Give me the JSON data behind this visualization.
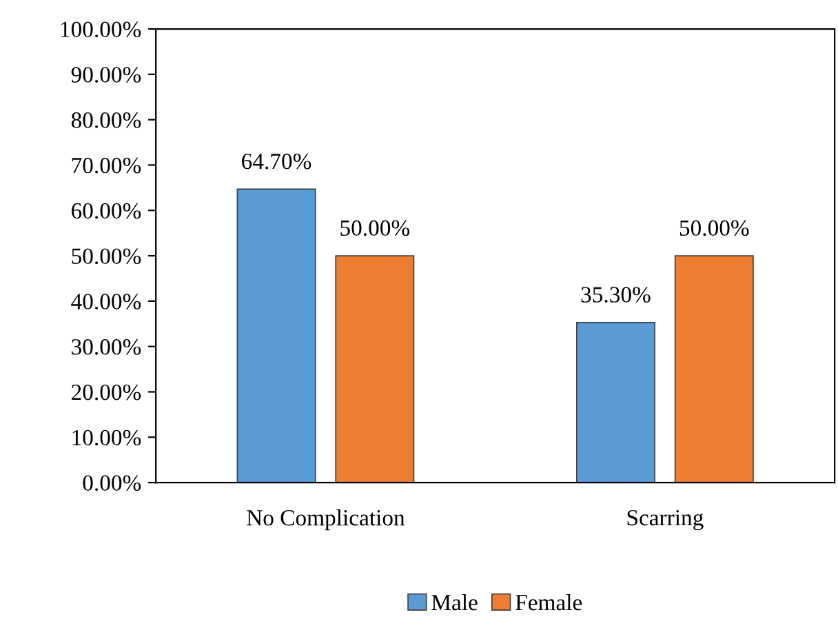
{
  "chart_data": {
    "type": "bar",
    "categories": [
      "No Complication",
      "Scarring"
    ],
    "series": [
      {
        "name": "Male",
        "color": "#5b9bd5",
        "values": [
          64.7,
          35.3
        ],
        "value_labels": [
          "64.70%",
          "35.30%"
        ]
      },
      {
        "name": "Female",
        "color": "#ed7d31",
        "values": [
          50.0,
          50.0
        ],
        "value_labels": [
          "50.00%",
          "50.00%"
        ]
      }
    ],
    "ylim": [
      0,
      100
    ],
    "yticks": [
      {
        "value": 0,
        "label": "0.00%"
      },
      {
        "value": 10,
        "label": "10.00%"
      },
      {
        "value": 20,
        "label": "20.00%"
      },
      {
        "value": 30,
        "label": "30.00%"
      },
      {
        "value": 40,
        "label": "40.00%"
      },
      {
        "value": 50,
        "label": "50.00%"
      },
      {
        "value": 60,
        "label": "60.00%"
      },
      {
        "value": 70,
        "label": "70.00%"
      },
      {
        "value": 80,
        "label": "80.00%"
      },
      {
        "value": 90,
        "label": "90.00%"
      },
      {
        "value": 100,
        "label": "100.00%"
      }
    ],
    "grid": false,
    "legend": "bottom"
  }
}
